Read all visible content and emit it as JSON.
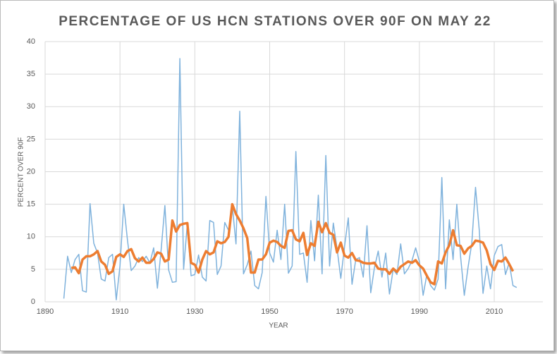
{
  "chart_data": {
    "type": "line",
    "title": "PERCENTAGE OF US HCN STATIONS OVER 90F ON MAY 22",
    "x_label": "YEAR",
    "y_label": "PERCENT OVER 90F",
    "x": [
      1895,
      1896,
      1897,
      1898,
      1899,
      1900,
      1901,
      1902,
      1903,
      1904,
      1905,
      1906,
      1907,
      1908,
      1909,
      1910,
      1911,
      1912,
      1913,
      1914,
      1915,
      1916,
      1917,
      1918,
      1919,
      1920,
      1921,
      1922,
      1923,
      1924,
      1925,
      1926,
      1927,
      1928,
      1929,
      1930,
      1931,
      1932,
      1933,
      1934,
      1935,
      1936,
      1937,
      1938,
      1939,
      1940,
      1941,
      1942,
      1943,
      1944,
      1945,
      1946,
      1947,
      1948,
      1949,
      1950,
      1951,
      1952,
      1953,
      1954,
      1955,
      1956,
      1957,
      1958,
      1959,
      1960,
      1961,
      1962,
      1963,
      1964,
      1965,
      1966,
      1967,
      1968,
      1969,
      1970,
      1971,
      1972,
      1973,
      1974,
      1975,
      1976,
      1977,
      1978,
      1979,
      1980,
      1981,
      1982,
      1983,
      1984,
      1985,
      1986,
      1987,
      1988,
      1989,
      1990,
      1991,
      1992,
      1993,
      1994,
      1995,
      1996,
      1997,
      1998,
      1999,
      2000,
      2001,
      2002,
      2003,
      2004,
      2005,
      2006,
      2007,
      2008,
      2009,
      2010,
      2011,
      2012,
      2013,
      2014,
      2015,
      2016
    ],
    "series": [
      {
        "color": "#7fb2dc",
        "width": 1.5,
        "values": [
          0.5,
          7,
          4.5,
          6.5,
          7.3,
          1.7,
          1.5,
          15.1,
          9,
          7.5,
          3.5,
          3.2,
          6.8,
          7.3,
          0.3,
          5.5,
          15,
          9.5,
          4.8,
          5.5,
          6.8,
          6.2,
          7,
          6,
          8.3,
          2.1,
          8,
          14.8,
          4.9,
          3,
          3.1,
          37.4,
          5,
          12,
          4,
          4.2,
          7.2,
          3.8,
          3.2,
          12.5,
          12.2,
          4.2,
          5.5,
          12.2,
          11,
          14.8,
          8.9,
          29.3,
          4.3,
          5.7,
          7.8,
          2.5,
          2,
          4.5,
          16.2,
          7.5,
          6.1,
          11,
          6.5,
          15,
          4.4,
          5.5,
          23.1,
          7.3,
          7.5,
          3,
          12.5,
          6.3,
          16.4,
          4.3,
          22.5,
          5.5,
          12.1,
          8.2,
          3.6,
          8.5,
          12.9,
          2.7,
          6.5,
          6.8,
          3.8,
          11.7,
          1.4,
          5.3,
          7.8,
          3.8,
          7.5,
          1.2,
          5,
          4.2,
          8.9,
          4.3,
          5.1,
          6.3,
          8.3,
          6.2,
          1,
          4.2,
          2.5,
          1.8,
          3.5,
          19.1,
          2,
          12.6,
          6.5,
          15,
          7,
          1,
          5.3,
          9,
          17.6,
          11,
          1.3,
          5.5,
          2,
          7.1,
          8.5,
          8.8,
          4.2,
          6,
          2.5,
          2.2
        ]
      },
      {
        "color": "#ed7d31",
        "width": 3.5,
        "values": [
          null,
          null,
          5.2,
          5.3,
          4.4,
          6.5,
          7,
          7,
          7.3,
          7.8,
          6.2,
          5.7,
          4.3,
          4.7,
          6.9,
          7.3,
          6.9,
          7.8,
          8.1,
          6.7,
          6.2,
          6.8,
          6,
          6,
          6.6,
          7.6,
          7.4,
          6.2,
          6.5,
          12.5,
          10.8,
          11.8,
          12,
          12.1,
          6,
          5.7,
          4.5,
          6.5,
          7.8,
          7.3,
          7.6,
          9.3,
          9,
          9.2,
          10,
          15,
          13.5,
          12.5,
          11.3,
          9.8,
          4.5,
          4.5,
          6.5,
          6.5,
          7.3,
          9.1,
          9.4,
          9.2,
          8.6,
          8.3,
          10.9,
          11,
          9.6,
          9.3,
          10.6,
          7.2,
          9,
          8.6,
          12.3,
          10.7,
          12.1,
          10.6,
          10.3,
          7.6,
          9.1,
          7.1,
          6.8,
          7.5,
          6.4,
          6.3,
          6,
          5.9,
          5.9,
          6,
          5.1,
          5,
          5,
          4.3,
          5.1,
          4.6,
          5.4,
          5.8,
          6.2,
          6,
          6.4,
          5.6,
          5.1,
          4,
          3,
          2.7,
          6.2,
          5.9,
          7.6,
          8.7,
          11,
          8.7,
          8.6,
          7.4,
          8.2,
          8.6,
          9.4,
          9.3,
          9.1,
          7.9,
          5.8,
          4.9,
          6.3,
          6.2,
          6.8,
          5.8,
          4.7,
          null
        ]
      }
    ],
    "xlim": [
      1890,
      2023
    ],
    "xticks": [
      1890,
      1910,
      1930,
      1950,
      1970,
      1990,
      2010
    ],
    "ylim": [
      0,
      40
    ],
    "yticks": [
      0,
      5,
      10,
      15,
      20,
      25,
      30,
      35,
      40
    ],
    "grid": true
  }
}
